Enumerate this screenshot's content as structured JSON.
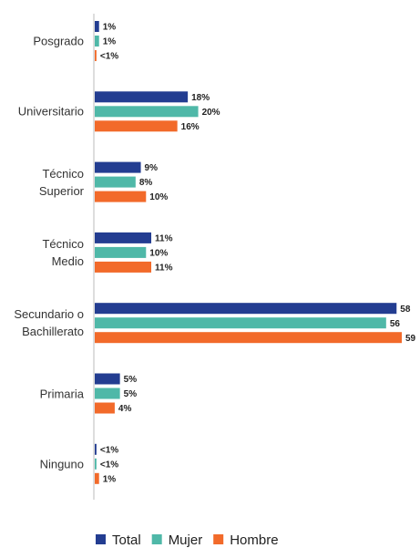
{
  "chart_data": {
    "type": "bar",
    "orientation": "horizontal",
    "categories": [
      "Posgrado",
      "Universitario",
      "Técnico\nSuperior",
      "Técnico\nMedio",
      "Secundario o\nBachillerato",
      "Primaria",
      "Ninguno"
    ],
    "series": [
      {
        "name": "Total",
        "color": "#233d91",
        "values": [
          1,
          18,
          9,
          11,
          58,
          5,
          0.5
        ],
        "value_labels": [
          "1%",
          "18%",
          "9%",
          "11%",
          "58",
          "5%",
          "<1%"
        ]
      },
      {
        "name": "Mujer",
        "color": "#4fb8a8",
        "values": [
          1,
          20,
          8,
          10,
          56,
          5,
          0.5
        ],
        "value_labels": [
          "1%",
          "20%",
          "8%",
          "10%",
          "56",
          "5%",
          "<1%"
        ]
      },
      {
        "name": "Hombre",
        "color": "#f26a2a",
        "values": [
          0.5,
          16,
          10,
          11,
          59,
          4,
          1
        ],
        "value_labels": [
          "<1%",
          "16%",
          "10%",
          "11%",
          "59",
          "4%",
          "1%"
        ]
      }
    ],
    "legend": "bottom"
  }
}
